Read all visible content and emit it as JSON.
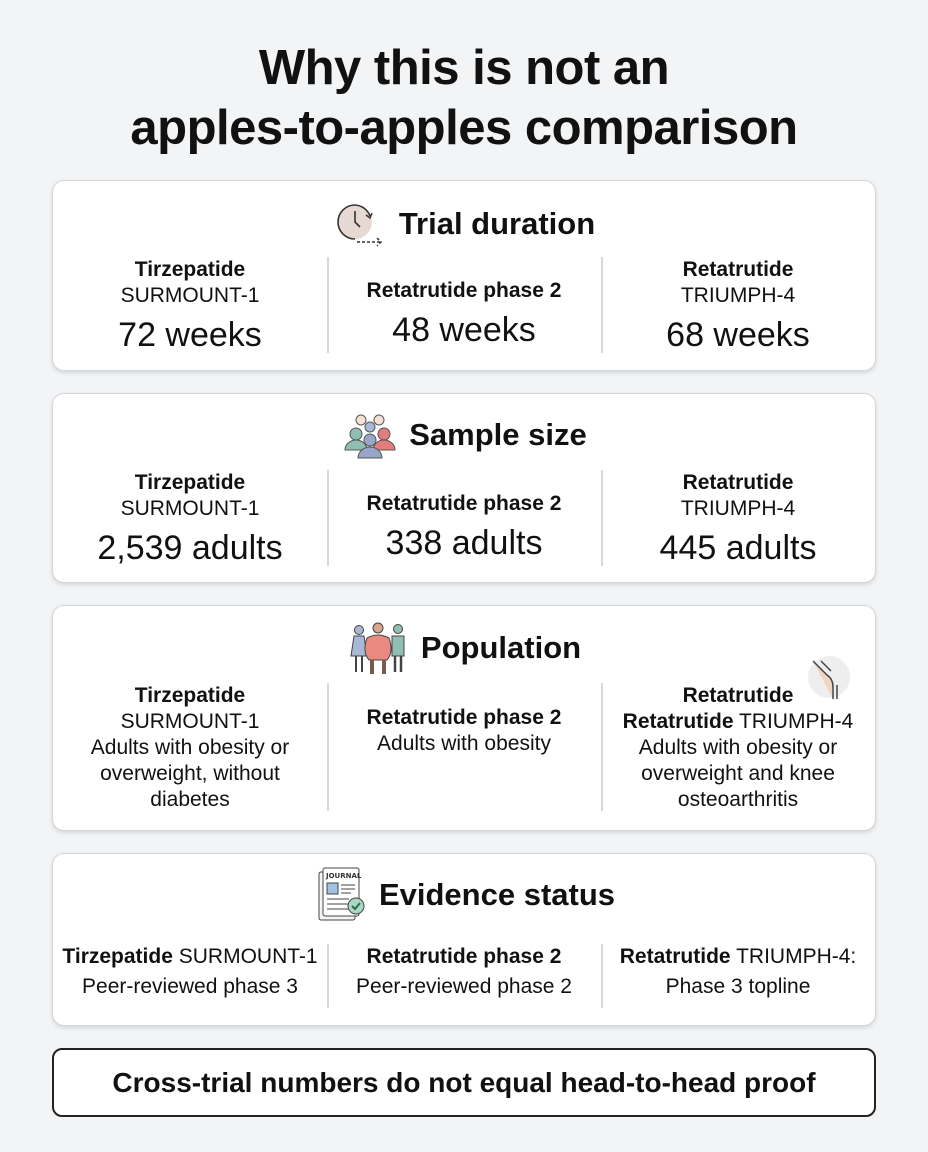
{
  "title": {
    "line1": "Why this is not an",
    "line2": "apples-to-apples comparison"
  },
  "duration": {
    "heading": "Trial duration",
    "icon": "clock-icon",
    "cols": [
      {
        "drug": "Tirzepatide",
        "trial": "SURMOUNT-1",
        "value": "72 weeks"
      },
      {
        "drug": "Retatrutide phase 2",
        "trial": "",
        "value": "48 weeks"
      },
      {
        "drug": "Retatrutide",
        "trial": "TRIUMPH-4",
        "value": "68 weeks"
      }
    ]
  },
  "sample": {
    "heading": "Sample size",
    "icon": "people-group-icon",
    "cols": [
      {
        "drug": "Tirzepatide",
        "trial": "SURMOUNT-1",
        "value": "2,539 adults"
      },
      {
        "drug": "Retatrutide phase 2",
        "trial": "",
        "value": "338 adults"
      },
      {
        "drug": "Retatrutide",
        "trial": "TRIUMPH-4",
        "value": "445 adults"
      }
    ]
  },
  "population": {
    "heading": "Population",
    "icon": "people-icon",
    "cols": [
      {
        "drug": "Tirzepatide",
        "trial": "SURMOUNT-1",
        "desc": "Adults with obesity or overweight, without diabetes"
      },
      {
        "drug": "Retatrutide phase 2",
        "trial": "",
        "desc": "Adults with obesity"
      },
      {
        "drug": "Retatrutide",
        "drug2": "Retatrutide",
        "trial": "TRIUMPH-4",
        "desc": "Adults with obesity or overweight and knee osteoarthritis",
        "icon": "knee-icon"
      }
    ]
  },
  "evidence": {
    "heading": "Evidence status",
    "icon": "journal-check-icon",
    "journal_text": "JOURNAL",
    "cols": [
      {
        "drug": "Tirzepatide",
        "trial": "SURMOUNT-1",
        "desc": "Peer-reviewed phase 3"
      },
      {
        "drug": "Retatrutide phase 2",
        "trial": "",
        "desc": "Peer-reviewed phase 2"
      },
      {
        "drug": "Retatrutide",
        "trial": "TRIUMPH-4:",
        "desc": "Phase 3 topline"
      }
    ]
  },
  "footer": "Cross-trial numbers do not equal head-to-head proof"
}
